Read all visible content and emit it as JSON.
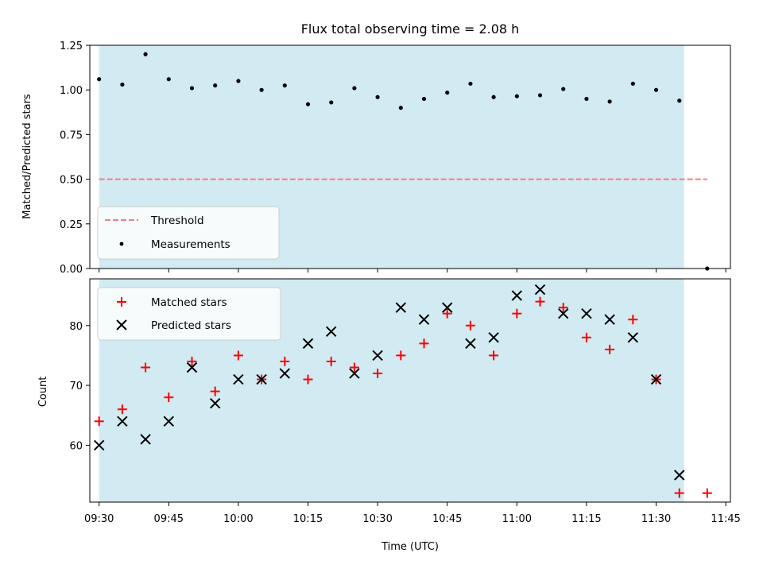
{
  "chart_data": [
    {
      "type": "scatter",
      "title": "Flux total observing time = 2.08 h",
      "xlabel": "",
      "ylabel": "Matched/Predicted stars",
      "ylim": [
        0,
        1.25
      ],
      "yticks": [
        "0.00",
        "0.25",
        "0.50",
        "0.75",
        "1.00",
        "1.25"
      ],
      "shaded_span": {
        "start": "09:30",
        "end": "11:36",
        "color": "#add8e6"
      },
      "threshold": {
        "name": "Threshold",
        "value": 0.5,
        "x_start": "09:30",
        "x_end": "11:41",
        "color": "#f08080"
      },
      "legend_position": "lower-left",
      "series": [
        {
          "name": "Measurements",
          "color": "#000000",
          "marker": "dot",
          "x": [
            "09:30",
            "09:35",
            "09:40",
            "09:45",
            "09:50",
            "09:55",
            "10:00",
            "10:05",
            "10:10",
            "10:15",
            "10:20",
            "10:25",
            "10:30",
            "10:35",
            "10:40",
            "10:45",
            "10:50",
            "10:55",
            "11:00",
            "11:05",
            "11:10",
            "11:15",
            "11:20",
            "11:25",
            "11:30",
            "11:35",
            "11:41"
          ],
          "y": [
            1.06,
            1.03,
            1.2,
            1.06,
            1.01,
            1.025,
            1.05,
            1.0,
            1.025,
            0.92,
            0.93,
            1.01,
            0.96,
            0.9,
            0.95,
            0.985,
            1.035,
            0.96,
            0.965,
            0.97,
            1.005,
            0.95,
            0.935,
            1.035,
            1.0,
            0.94,
            0.0
          ]
        }
      ]
    },
    {
      "type": "scatter",
      "title": "",
      "xlabel": "Time (UTC)",
      "ylabel": "Count",
      "ylim": [
        50.5,
        87.8
      ],
      "yticks": [
        "60",
        "70",
        "80"
      ],
      "xlim": [
        "09:28",
        "11:46"
      ],
      "xticks": [
        "09:30",
        "09:45",
        "10:00",
        "10:15",
        "10:30",
        "10:45",
        "11:00",
        "11:15",
        "11:30",
        "11:45"
      ],
      "shaded_span": {
        "start": "09:30",
        "end": "11:36",
        "color": "#add8e6"
      },
      "legend_position": "upper-left",
      "series": [
        {
          "name": "Matched stars",
          "color": "#ff0000",
          "marker": "plus",
          "x": [
            "09:30",
            "09:35",
            "09:40",
            "09:45",
            "09:50",
            "09:55",
            "10:00",
            "10:05",
            "10:10",
            "10:15",
            "10:20",
            "10:25",
            "10:30",
            "10:35",
            "10:40",
            "10:45",
            "10:50",
            "10:55",
            "11:00",
            "11:05",
            "11:10",
            "11:15",
            "11:20",
            "11:25",
            "11:30",
            "11:35",
            "11:41"
          ],
          "y": [
            64,
            66,
            73,
            68,
            74,
            69,
            75,
            71,
            74,
            71,
            74,
            73,
            72,
            75,
            77,
            82,
            80,
            75,
            82,
            84,
            83,
            78,
            76,
            81,
            71,
            52,
            52
          ]
        },
        {
          "name": "Predicted stars",
          "color": "#000000",
          "marker": "x",
          "x": [
            "09:30",
            "09:35",
            "09:40",
            "09:45",
            "09:50",
            "09:55",
            "10:00",
            "10:05",
            "10:10",
            "10:15",
            "10:20",
            "10:25",
            "10:30",
            "10:35",
            "10:40",
            "10:45",
            "10:50",
            "10:55",
            "11:00",
            "11:05",
            "11:10",
            "11:15",
            "11:20",
            "11:25",
            "11:30",
            "11:35"
          ],
          "y": [
            60,
            64,
            61,
            64,
            73,
            67,
            71,
            71,
            72,
            77,
            79,
            72,
            75,
            83,
            81,
            83,
            77,
            78,
            85,
            86,
            82,
            82,
            81,
            78,
            71,
            55
          ]
        }
      ]
    }
  ]
}
